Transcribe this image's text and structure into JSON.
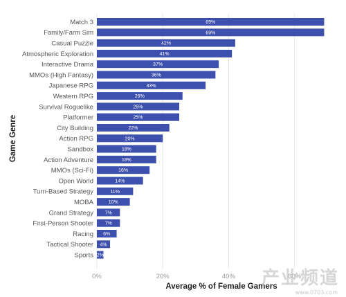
{
  "chart_data": {
    "type": "bar",
    "orientation": "horizontal",
    "xlabel": "Average % of Female Gamers",
    "ylabel": "Game Genre",
    "xlim": [
      0,
      75
    ],
    "xticks": [
      "0%",
      "20%",
      "40%",
      "60%"
    ],
    "xtick_values": [
      0,
      20,
      40,
      60
    ],
    "grid": "vertical",
    "bar_color": "#3d50ad",
    "categories": [
      "Match 3",
      "Family/Farm Sim",
      "Casual Puzzle",
      "Atmospheric Exploration",
      "Interactive Drama",
      "MMOs (High Fantasy)",
      "Japanese RPG",
      "Western RPG",
      "Survival Roguelike",
      "Platformer",
      "City Building",
      "Action RPG",
      "Sandbox",
      "Action Adventure",
      "MMOs (Sci-Fi)",
      "Open World",
      "Turn-Based Strategy",
      "MOBA",
      "Grand Strategy",
      "First-Person Shooter",
      "Racing",
      "Tactical Shooter",
      "Sports"
    ],
    "values": [
      69,
      69,
      42,
      41,
      37,
      36,
      33,
      26,
      25,
      25,
      22,
      20,
      18,
      18,
      16,
      14,
      11,
      10,
      7,
      7,
      6,
      4,
      2
    ],
    "value_labels": [
      "69%",
      "69%",
      "42%",
      "41%",
      "37%",
      "36%",
      "33%",
      "26%",
      "25%",
      "25%",
      "22%",
      "20%",
      "18%",
      "18%",
      "16%",
      "14%",
      "11%",
      "10%",
      "7%",
      "7%",
      "6%",
      "4%",
      "2%"
    ]
  },
  "watermark": {
    "logo": "产业频道",
    "url": "www.0703.com"
  }
}
